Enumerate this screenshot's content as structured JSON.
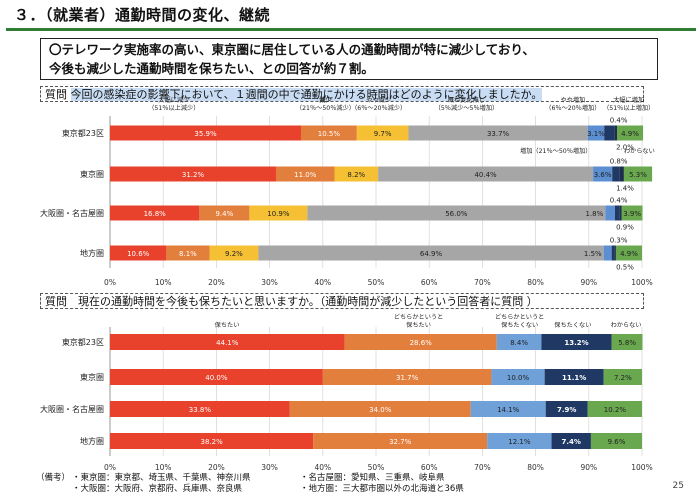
{
  "title": "３．（就業者）通勤時間の変化、継続",
  "summary": {
    "line1": "〇テレワーク実施率の高い、東京圏に居住している人の通勤時間が特に減少しており、",
    "line2": "今後も減少した通勤時間を保ちたい、との回答が約７割。"
  },
  "question1": {
    "prefix": "質問",
    "text": "今回の感染症の影響下において、１週間の中で通勤にかける時間はどのように変化しましたか。"
  },
  "question2": {
    "text": "質問　現在の通勤時間を今後も保ちたいと思いますか。（通勤時間が減少したという回答者に質問 ）"
  },
  "footnote": {
    "label": "（備考）",
    "lines_left": [
      "・東京圏：東京都、埼玉県、千葉県、神奈川県",
      "・大阪圏：大阪府、京都府、兵庫県、奈良県"
    ],
    "lines_right": [
      "・名古屋圏：愛知県、三重県、岐阜県",
      "・地方圏：三大都市圏以外の北海道と36県"
    ]
  },
  "page_number": "25",
  "chart_data": [
    {
      "type": "bar",
      "orientation": "horizontal",
      "stacked": true,
      "categories": [
        "東京都23区",
        "東京圏",
        "大阪圏・名古屋圏",
        "地方圏"
      ],
      "xlim": [
        0,
        100
      ],
      "x_ticks": [
        "0%",
        "10%",
        "20%",
        "30%",
        "40%",
        "50%",
        "60%",
        "70%",
        "80%",
        "90%",
        "100%"
      ],
      "grid": true,
      "series": [
        {
          "name": "大幅に減少（51％以上減少）",
          "color": "#e8412c",
          "values": [
            35.9,
            31.2,
            16.8,
            10.6
          ]
        },
        {
          "name": "減少（21％～50％減少）",
          "color": "#e37f3d",
          "values": [
            10.5,
            11.0,
            9.4,
            8.1
          ]
        },
        {
          "name": "やや減少（6％～20％減少）",
          "color": "#f5c034",
          "values": [
            9.7,
            8.2,
            10.9,
            9.2
          ]
        },
        {
          "name": "概ね変化無し（5％減少～5％増加）",
          "color": "#a6a6a6",
          "values": [
            33.7,
            40.4,
            56.0,
            64.9
          ]
        },
        {
          "name": "やや増加（6％～20％増加）",
          "color": "#5b8fd1",
          "values": [
            3.1,
            3.6,
            1.8,
            1.5
          ]
        },
        {
          "name": "増加（21％～50％増加）",
          "color": "#1f3864",
          "values": [
            2.0,
            1.4,
            0.9,
            0.5
          ]
        },
        {
          "name": "大幅に増加（51％以上増加）",
          "color": "#1c2e4a",
          "values": [
            0.4,
            0.8,
            0.4,
            0.3
          ]
        },
        {
          "name": "わからない",
          "color": "#6aa84f",
          "values": [
            4.9,
            5.3,
            3.9,
            4.9
          ]
        }
      ],
      "annotations": {
        "above_bar": [
          {
            "lines": [
              "大幅に減少",
              "（51％以上減少）"
            ],
            "at": 12
          },
          {
            "lines": [
              "減少",
              "（21％～50％減少）"
            ],
            "at": 40.5
          },
          {
            "lines": [
              "やや減少",
              "（6％～20％減少）"
            ],
            "at": 50.5
          },
          {
            "lines": [
              "概ね変化無し",
              "（5％減少～5％増加）"
            ],
            "at": 67
          },
          {
            "lines": [
              "やや増加",
              "（6％～20％増加）"
            ],
            "at": 87
          },
          {
            "lines": [
              "大幅に増加",
              "（51％以上増加）"
            ],
            "at": 97.5
          }
        ],
        "below_first_bar_left": "増加（21％～50％増加）",
        "below_first_bar_right": "わからない"
      }
    },
    {
      "type": "bar",
      "orientation": "horizontal",
      "stacked": true,
      "categories": [
        "東京都23区",
        "東京圏",
        "大阪圏・名古屋圏",
        "地方圏"
      ],
      "xlim": [
        0,
        100
      ],
      "x_ticks": [
        "0%",
        "10%",
        "20%",
        "30%",
        "40%",
        "50%",
        "60%",
        "70%",
        "80%",
        "90%",
        "100%"
      ],
      "grid": true,
      "series": [
        {
          "name": "保ちたい",
          "color": "#e8412c",
          "values": [
            44.1,
            40.0,
            33.8,
            38.2
          ]
        },
        {
          "name": "どちらかというと保ちたい",
          "color": "#e37f3d",
          "values": [
            28.6,
            31.7,
            34.0,
            32.7
          ]
        },
        {
          "name": "どちらかというと保ちたくない",
          "color": "#6fa0d8",
          "values": [
            8.4,
            10.0,
            14.1,
            12.1
          ]
        },
        {
          "name": "保ちたくない",
          "color": "#1f3864",
          "values": [
            13.2,
            11.1,
            7.9,
            7.4
          ]
        },
        {
          "name": "わからない",
          "color": "#6aa84f",
          "values": [
            5.8,
            7.2,
            10.2,
            9.6
          ]
        }
      ],
      "annotations": {
        "above_bar": [
          {
            "lines": [
              "保ちたい"
            ],
            "at": 22
          },
          {
            "lines": [
              "どちらかというと",
              "保ちたい"
            ],
            "at": 58
          },
          {
            "lines": [
              "どちらかというと",
              "保ちたくない"
            ],
            "at": 77
          },
          {
            "lines": [
              "保ちたくない"
            ],
            "at": 87
          },
          {
            "lines": [
              "わからない"
            ],
            "at": 97
          }
        ]
      }
    }
  ]
}
